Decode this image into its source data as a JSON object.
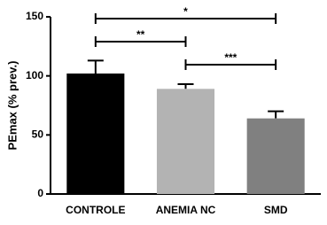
{
  "chart_data": {
    "type": "bar",
    "y_label": "PEmax (% prev.)",
    "categories": [
      "CONTROLE",
      "ANEMIA NC",
      "SMD"
    ],
    "values": [
      102,
      89,
      64
    ],
    "errors": [
      11,
      4,
      6
    ],
    "colors": [
      "#000000",
      "#b3b3b3",
      "#808080"
    ],
    "ylim": [
      0,
      150
    ],
    "yticks": [
      0,
      50,
      100,
      150
    ],
    "grid": false,
    "annotations": [
      {
        "text": "*",
        "from": "CONTROLE",
        "to": "SMD"
      },
      {
        "text": "**",
        "from": "CONTROLE",
        "to": "ANEMIA NC"
      },
      {
        "text": "***",
        "from": "ANEMIA NC",
        "to": "SMD"
      }
    ]
  }
}
